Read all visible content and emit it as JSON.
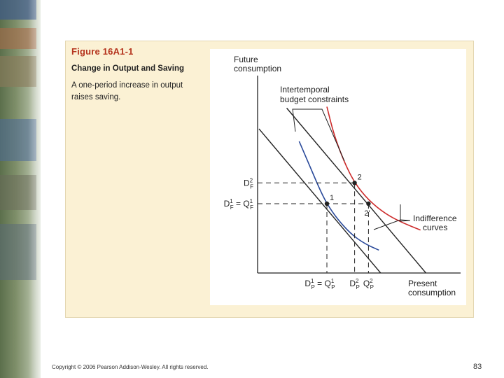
{
  "figure": {
    "title": "Figure 16A1-1",
    "subtitle": "Change in Output and Saving",
    "caption": "A one-period increase in output raises saving."
  },
  "chart_data": {
    "type": "line",
    "title": "Change in Output and Saving",
    "ylabel_lines": [
      "Future",
      "consumption"
    ],
    "xlabel_lines": [
      "Present",
      "consumption"
    ],
    "annotations": {
      "budget_lines": [
        "Intertemporal",
        "budget constraints"
      ],
      "indifference": [
        "Indifference",
        "curves"
      ]
    },
    "points": [
      {
        "name": "1",
        "x": 1.0,
        "y": 1.0
      },
      {
        "name": "2",
        "x": 1.4,
        "y": 1.3
      },
      {
        "name": "2'",
        "x": 1.6,
        "y": 1.0
      }
    ],
    "x_ticks": [
      {
        "base": "D",
        "sub": "P",
        "sup": "1",
        "suffix": " = Q",
        "suffix_sub": "P",
        "suffix_sup": "1",
        "value": 1.0
      },
      {
        "base": "D",
        "sub": "P",
        "sup": "2",
        "value": 1.4
      },
      {
        "base": "Q",
        "sub": "P",
        "sup": "2",
        "value": 1.6
      }
    ],
    "y_ticks": [
      {
        "base": "D",
        "sub": "F",
        "sup": "2",
        "value": 1.3
      },
      {
        "base": "D",
        "sub": "F",
        "sup": "1",
        "suffix": " = Q",
        "suffix_sub": "F",
        "suffix_sup": "1",
        "value": 1.0
      }
    ],
    "series": [
      {
        "name": "Budget constraint 1",
        "kind": "budget",
        "color": "#222222",
        "x": [
          0.02,
          2.24
        ],
        "y": [
          2.08,
          -0.55
        ]
      },
      {
        "name": "Budget constraint 2",
        "kind": "budget",
        "color": "#222222",
        "x": [
          0.42,
          2.64
        ],
        "y": [
          2.38,
          -0.25
        ]
      },
      {
        "name": "Indifference curve 1",
        "kind": "indifference",
        "color": "#2a4a9a",
        "x": [
          0.6,
          0.75,
          0.9,
          1.0,
          1.15,
          1.35,
          1.55,
          1.75
        ],
        "y": [
          1.9,
          1.55,
          1.2,
          1.0,
          0.78,
          0.56,
          0.42,
          0.33
        ]
      },
      {
        "name": "Indifference curve 2",
        "kind": "indifference",
        "color": "#cc2a2a",
        "x": [
          1.0,
          1.1,
          1.25,
          1.4,
          1.6,
          1.85,
          2.1,
          2.35
        ],
        "y": [
          2.4,
          2.0,
          1.6,
          1.3,
          1.05,
          0.85,
          0.72,
          0.62
        ]
      }
    ],
    "xlim": [
      0,
      3.0
    ],
    "ylim": [
      0,
      3.0
    ],
    "colors": {
      "axis": "#222222",
      "panel": "#fbf1d4",
      "title": "#b5341e"
    }
  },
  "footer": {
    "copyright": "Copyright © 2006 Pearson Addison-Wesley. All rights reserved.",
    "page": "83"
  }
}
